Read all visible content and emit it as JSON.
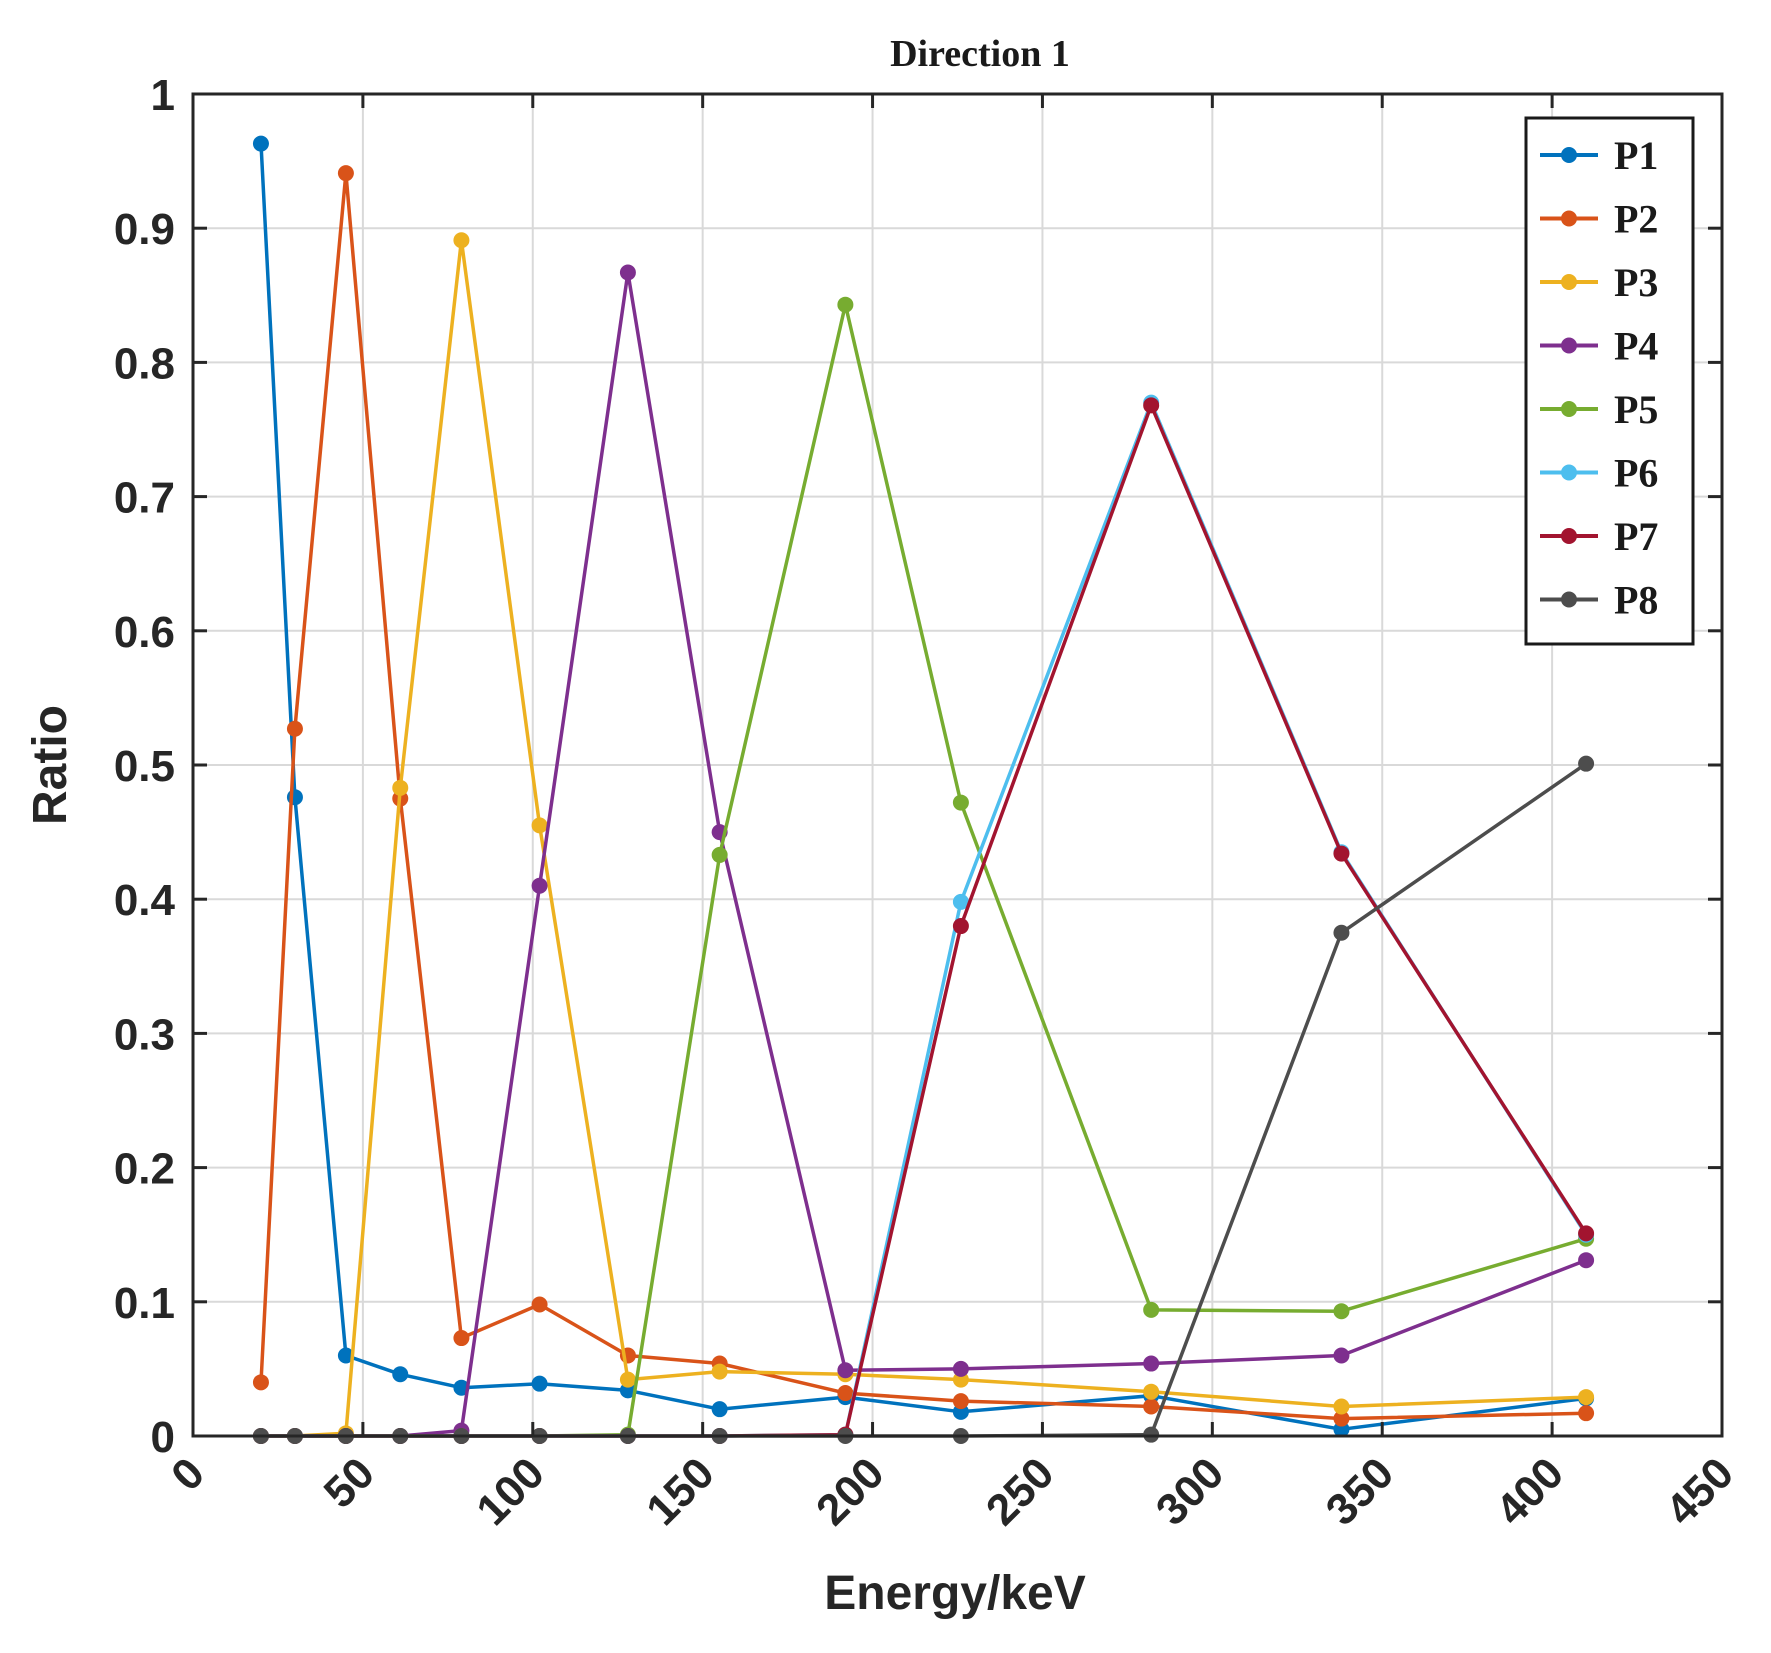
{
  "chart_data": {
    "type": "line",
    "title": "Direction 1",
    "xlabel": "Energy/keV",
    "ylabel": "Ratio",
    "xlim": [
      0,
      450
    ],
    "ylim": [
      0,
      1
    ],
    "xticks": [
      0,
      50,
      100,
      150,
      200,
      250,
      300,
      350,
      400,
      450
    ],
    "yticks": [
      0,
      0.1,
      0.2,
      0.3,
      0.4,
      0.5,
      0.6,
      0.7,
      0.8,
      0.9,
      1
    ],
    "xtick_labels": [
      "0",
      "50",
      "100",
      "150",
      "200",
      "250",
      "300",
      "350",
      "400",
      "450"
    ],
    "ytick_labels": [
      "0",
      "0.1",
      "0.2",
      "0.3",
      "0.4",
      "0.5",
      "0.6",
      "0.7",
      "0.8",
      "0.9",
      "1"
    ],
    "grid": true,
    "legend_position": "top-right",
    "series": [
      {
        "name": "P1",
        "color": "#0072BD",
        "x": [
          20,
          30,
          45,
          61,
          79,
          102,
          128,
          155,
          192,
          226,
          282,
          338,
          410
        ],
        "y": [
          0.963,
          0.476,
          0.06,
          0.046,
          0.036,
          0.039,
          0.034,
          0.02,
          0.029,
          0.018,
          0.03,
          0.005,
          0.028
        ]
      },
      {
        "name": "P2",
        "color": "#D95319",
        "x": [
          20,
          30,
          45,
          61,
          79,
          102,
          128,
          155,
          192,
          226,
          282,
          338,
          410
        ],
        "y": [
          0.04,
          0.527,
          0.941,
          0.475,
          0.073,
          0.098,
          0.06,
          0.054,
          0.032,
          0.026,
          0.022,
          0.013,
          0.017
        ]
      },
      {
        "name": "P3",
        "color": "#EDB120",
        "x": [
          20,
          30,
          45,
          61,
          79,
          102,
          128,
          155,
          192,
          226,
          282,
          338,
          410
        ],
        "y": [
          0.0,
          0.0,
          0.002,
          0.483,
          0.891,
          0.455,
          0.042,
          0.048,
          0.046,
          0.042,
          0.033,
          0.022,
          0.029
        ]
      },
      {
        "name": "P4",
        "color": "#7E2F8E",
        "x": [
          20,
          30,
          45,
          61,
          79,
          102,
          128,
          155,
          192,
          226,
          282,
          338,
          410
        ],
        "y": [
          0.0,
          0.0,
          0.0,
          0.0,
          0.004,
          0.41,
          0.867,
          0.45,
          0.049,
          0.05,
          0.054,
          0.06,
          0.131
        ]
      },
      {
        "name": "P5",
        "color": "#77AC30",
        "x": [
          20,
          30,
          45,
          61,
          79,
          102,
          128,
          155,
          192,
          226,
          282,
          338,
          410
        ],
        "y": [
          0.0,
          0.0,
          0.0,
          0.0,
          0.0,
          0.0,
          0.001,
          0.433,
          0.843,
          0.472,
          0.094,
          0.093,
          0.147
        ]
      },
      {
        "name": "P6",
        "color": "#4DBEEE",
        "x": [
          20,
          30,
          45,
          61,
          79,
          102,
          128,
          155,
          192,
          226,
          282,
          338,
          410
        ],
        "y": [
          0.0,
          0.0,
          0.0,
          0.0,
          0.0,
          0.0,
          0.0,
          0.0,
          0.001,
          0.398,
          0.77,
          0.435,
          0.15
        ]
      },
      {
        "name": "P7",
        "color": "#A2142F",
        "x": [
          20,
          30,
          45,
          61,
          79,
          102,
          128,
          155,
          192,
          226,
          282,
          338,
          410
        ],
        "y": [
          0.0,
          0.0,
          0.0,
          0.0,
          0.0,
          0.0,
          0.0,
          0.0,
          0.001,
          0.38,
          0.768,
          0.434,
          0.151
        ]
      },
      {
        "name": "P8",
        "color": "#4D4D4D",
        "x": [
          20,
          30,
          45,
          61,
          79,
          102,
          128,
          155,
          192,
          226,
          282,
          338,
          410
        ],
        "y": [
          0.0,
          0.0,
          0.0,
          0.0,
          0.0,
          0.0,
          0.0,
          0.0,
          0.0,
          0.0,
          0.001,
          0.375,
          0.501
        ]
      }
    ]
  }
}
